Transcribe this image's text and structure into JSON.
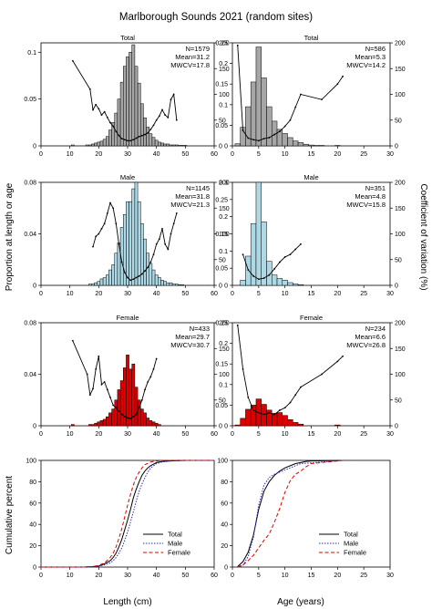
{
  "figure": {
    "title": "Marlborough Sounds 2021 (random sites)",
    "y_label_left": "Proportion at length or age",
    "y_label_right": "Coefficient of variation (%)",
    "x_label_length": "Length (cm)",
    "x_label_age": "Age (years)"
  },
  "chart_data": [
    {
      "id": "length-total",
      "type": "bar",
      "title": "Total",
      "xlim": [
        0,
        60
      ],
      "xticks": [
        0,
        10,
        20,
        30,
        40,
        50,
        60
      ],
      "ylim": [
        0,
        0.11
      ],
      "yticks": [
        0,
        0.05,
        0.1
      ],
      "yticklabels": [
        "0",
        "0.05",
        "0.1"
      ],
      "y2lim": [
        0,
        200
      ],
      "y2ticks": [
        0,
        50,
        100,
        150,
        200
      ],
      "fill": "#a6a6a6",
      "stats": [
        "N=1579",
        "Mean=31.2",
        "MWCV=17.8"
      ],
      "x": [
        11,
        16,
        17,
        18,
        19,
        20,
        21,
        22,
        23,
        24,
        25,
        26,
        27,
        28,
        29,
        30,
        31,
        32,
        33,
        34,
        35,
        36,
        37,
        38,
        39,
        40,
        41,
        42,
        43,
        44,
        45,
        46,
        47,
        48,
        49,
        50
      ],
      "values": [
        0.001,
        0.001,
        0.001,
        0.002,
        0.003,
        0.004,
        0.005,
        0.007,
        0.01,
        0.017,
        0.025,
        0.035,
        0.05,
        0.068,
        0.085,
        0.095,
        0.1,
        0.108,
        0.085,
        0.067,
        0.045,
        0.03,
        0.02,
        0.013,
        0.009,
        0.006,
        0.004,
        0.003,
        0.002,
        0.002,
        0.001,
        0.001,
        0.001,
        0.0005,
        0.0005,
        0.0005
      ],
      "cv": {
        "x": [
          11,
          17,
          18,
          19,
          20,
          21,
          22,
          23,
          24,
          25,
          26,
          27,
          28,
          29,
          30,
          31,
          32,
          33,
          34,
          35,
          36,
          37,
          38,
          39,
          40,
          41,
          42,
          43,
          44,
          45,
          46,
          47
        ],
        "values": [
          165,
          110,
          70,
          80,
          72,
          60,
          66,
          55,
          45,
          38,
          28,
          20,
          14,
          12,
          10,
          10,
          12,
          15,
          18,
          20,
          22,
          25,
          32,
          40,
          50,
          58,
          70,
          60,
          55,
          90,
          100,
          50
        ]
      }
    },
    {
      "id": "age-total",
      "type": "bar",
      "title": "Total",
      "xlim": [
        0,
        30
      ],
      "xticks": [
        0,
        5,
        10,
        15,
        20,
        25,
        30
      ],
      "ylim": [
        0,
        0.25
      ],
      "yticks": [
        0,
        0.05,
        0.1,
        0.15,
        0.2,
        0.25
      ],
      "yticklabels": [
        "0",
        "0.05",
        "0.1",
        "0.15",
        "0.2",
        "0.25"
      ],
      "y2lim": [
        0,
        200
      ],
      "y2ticks": [
        0,
        50,
        100,
        150,
        200
      ],
      "fill": "#a6a6a6",
      "stats": [
        "N=586",
        "Mean=5.3",
        "MWCV=14.2"
      ],
      "x": [
        1,
        2,
        3,
        4,
        5,
        6,
        7,
        8,
        9,
        10,
        11,
        12,
        13,
        14,
        15,
        16,
        17,
        18,
        19,
        20,
        21
      ],
      "values": [
        0.005,
        0.045,
        0.095,
        0.155,
        0.24,
        0.165,
        0.095,
        0.06,
        0.04,
        0.03,
        0.02,
        0.012,
        0.008,
        0.004,
        0.002,
        0.001,
        0.001,
        0,
        0,
        0.001,
        0
      ],
      "cv": {
        "x": [
          1,
          2,
          3,
          4,
          5,
          6,
          7,
          8,
          9,
          10,
          11,
          12,
          13,
          17,
          20,
          21
        ],
        "values": [
          195,
          30,
          15,
          12,
          10,
          14,
          16,
          22,
          28,
          38,
          50,
          75,
          100,
          90,
          120,
          135
        ]
      }
    },
    {
      "id": "length-male",
      "type": "bar",
      "title": "Male",
      "xlim": [
        0,
        60
      ],
      "xticks": [
        0,
        10,
        20,
        30,
        40,
        50,
        60
      ],
      "ylim": [
        0,
        0.08
      ],
      "yticks": [
        0,
        0.04,
        0.08
      ],
      "yticklabels": [
        "0",
        "0.04",
        "0.08"
      ],
      "y2lim": [
        0,
        200
      ],
      "y2ticks": [
        0,
        50,
        100,
        150,
        200
      ],
      "fill": "#add8e6",
      "stats": [
        "N=1145",
        "Mean=31.8",
        "MWCV=21.3"
      ],
      "x": [
        17,
        18,
        19,
        20,
        21,
        22,
        23,
        24,
        25,
        26,
        27,
        28,
        29,
        30,
        31,
        32,
        33,
        34,
        35,
        36,
        37,
        38,
        39,
        40,
        41,
        42,
        43,
        44,
        45,
        46,
        47,
        48,
        49
      ],
      "values": [
        0.001,
        0.001,
        0.002,
        0.003,
        0.005,
        0.006,
        0.008,
        0.012,
        0.016,
        0.025,
        0.033,
        0.045,
        0.055,
        0.065,
        0.065,
        0.075,
        0.08,
        0.065,
        0.048,
        0.036,
        0.025,
        0.017,
        0.012,
        0.008,
        0.006,
        0.004,
        0.003,
        0.002,
        0.002,
        0.001,
        0.001,
        0.0005,
        0.0005
      ],
      "cv": {
        "x": [
          18,
          19,
          20,
          21,
          22,
          23,
          24,
          25,
          26,
          27,
          28,
          29,
          30,
          31,
          32,
          33,
          34,
          35,
          36,
          37,
          38,
          39,
          40,
          41,
          42,
          43,
          44,
          45,
          46,
          47
        ],
        "values": [
          75,
          95,
          100,
          110,
          120,
          140,
          160,
          150,
          120,
          80,
          45,
          25,
          15,
          10,
          12,
          15,
          18,
          22,
          28,
          35,
          45,
          60,
          80,
          90,
          110,
          80,
          70,
          100,
          120,
          140
        ]
      }
    },
    {
      "id": "age-male",
      "type": "bar",
      "title": "Male",
      "xlim": [
        0,
        30
      ],
      "xticks": [
        0,
        5,
        10,
        15,
        20,
        25,
        30
      ],
      "ylim": [
        0,
        0.3
      ],
      "yticks": [
        0,
        0.05,
        0.1,
        0.15,
        0.2,
        0.25,
        0.3
      ],
      "yticklabels": [
        "0",
        "0.05",
        "0.1",
        "0.15",
        "0.2",
        "0.25",
        "0.3"
      ],
      "y2lim": [
        0,
        200
      ],
      "y2ticks": [
        0,
        50,
        100,
        150,
        200
      ],
      "fill": "#add8e6",
      "stats": [
        "N=351",
        "Mean=4.8",
        "MWCV=15.8"
      ],
      "x": [
        2,
        3,
        4,
        5,
        6,
        7,
        8,
        9,
        10,
        11,
        12,
        13
      ],
      "values": [
        0.015,
        0.085,
        0.18,
        0.3,
        0.185,
        0.07,
        0.03,
        0.02,
        0.015,
        0.008,
        0.004,
        0.002
      ],
      "cv": {
        "x": [
          2,
          3,
          4,
          5,
          6,
          7,
          8,
          9,
          10,
          11,
          12,
          13
        ],
        "values": [
          60,
          30,
          18,
          12,
          14,
          20,
          32,
          45,
          55,
          60,
          70,
          80
        ]
      }
    },
    {
      "id": "length-female",
      "type": "bar",
      "title": "Female",
      "xlim": [
        0,
        60
      ],
      "xticks": [
        0,
        10,
        20,
        30,
        40,
        50,
        60
      ],
      "ylim": [
        0,
        0.08
      ],
      "yticks": [
        0,
        0.04,
        0.08
      ],
      "yticklabels": [
        "0",
        "0.04",
        "0.08"
      ],
      "y2lim": [
        0,
        200
      ],
      "y2ticks": [
        0,
        50,
        100,
        150,
        200
      ],
      "fill": "#dd0000",
      "stats": [
        "N=433",
        "Mean=29.7",
        "MWCV=30.7"
      ],
      "x": [
        11,
        17,
        18,
        19,
        20,
        21,
        22,
        23,
        24,
        25,
        26,
        27,
        28,
        29,
        30,
        31,
        32,
        33,
        34,
        35,
        36,
        37,
        38,
        39,
        40,
        41
      ],
      "values": [
        0.001,
        0.001,
        0.001,
        0.002,
        0.003,
        0.004,
        0.005,
        0.007,
        0.01,
        0.013,
        0.02,
        0.028,
        0.035,
        0.045,
        0.055,
        0.044,
        0.048,
        0.03,
        0.02,
        0.013,
        0.01,
        0.006,
        0.004,
        0.003,
        0.002,
        0.001
      ],
      "cv": {
        "x": [
          11,
          16,
          17,
          18,
          19,
          20,
          21,
          22,
          23,
          24,
          25,
          26,
          27,
          28,
          29,
          30,
          31,
          32,
          33,
          34,
          35,
          36,
          37,
          38,
          39,
          40
        ],
        "values": [
          165,
          100,
          60,
          72,
          110,
          135,
          80,
          85,
          70,
          55,
          40,
          35,
          28,
          22,
          18,
          15,
          14,
          18,
          22,
          35,
          50,
          70,
          85,
          95,
          110,
          130
        ]
      }
    },
    {
      "id": "age-female",
      "type": "bar",
      "title": "Female",
      "xlim": [
        0,
        30
      ],
      "xticks": [
        0,
        5,
        10,
        15,
        20,
        25,
        30
      ],
      "ylim": [
        0,
        0.25
      ],
      "yticks": [
        0,
        0.05,
        0.1,
        0.15,
        0.2,
        0.25
      ],
      "yticklabels": [
        "0",
        "0.05",
        "0.1",
        "0.15",
        "0.2",
        "0.25"
      ],
      "y2lim": [
        0,
        200
      ],
      "y2ticks": [
        0,
        50,
        100,
        150,
        200
      ],
      "fill": "#dd0000",
      "stats": [
        "N=234",
        "Mean=6.6",
        "MWCV=26.8"
      ],
      "x": [
        1,
        2,
        3,
        4,
        5,
        6,
        7,
        8,
        9,
        10,
        11,
        12,
        13,
        20
      ],
      "values": [
        0.002,
        0.018,
        0.04,
        0.05,
        0.065,
        0.052,
        0.038,
        0.03,
        0.032,
        0.025,
        0.015,
        0.008,
        0.004,
        0.002
      ],
      "cv": {
        "x": [
          1,
          2,
          3,
          4,
          5,
          6,
          7,
          8,
          9,
          10,
          11,
          12,
          13,
          17,
          20,
          21
        ],
        "values": [
          195,
          110,
          55,
          30,
          25,
          22,
          25,
          22,
          30,
          35,
          45,
          60,
          75,
          100,
          125,
          135
        ]
      }
    },
    {
      "id": "cum-length",
      "type": "line",
      "xlim": [
        0,
        60
      ],
      "xticks": [
        0,
        10,
        20,
        30,
        40,
        50,
        60
      ],
      "ylim": [
        0,
        100
      ],
      "yticks": [
        0,
        20,
        40,
        60,
        80,
        100
      ],
      "ylabel": "Cumulative percent",
      "legend_position": "bottom-right",
      "series": [
        {
          "name": "Total",
          "color": "#000000",
          "dash": "solid",
          "x": [
            0,
            15,
            18,
            20,
            22,
            24,
            25,
            26,
            27,
            28,
            29,
            30,
            31,
            32,
            33,
            34,
            35,
            36,
            37,
            38,
            40,
            42,
            45,
            50,
            60
          ],
          "values": [
            0,
            0,
            0.5,
            1,
            3,
            6,
            9,
            13,
            19,
            26,
            35,
            44,
            54,
            65,
            73,
            80,
            86,
            90,
            93,
            95,
            98,
            99,
            99.5,
            100,
            100
          ]
        },
        {
          "name": "Male",
          "color": "#2a2acc",
          "dash": "dotted",
          "x": [
            0,
            15,
            18,
            20,
            22,
            24,
            25,
            26,
            27,
            28,
            29,
            30,
            31,
            32,
            33,
            34,
            35,
            36,
            37,
            38,
            40,
            42,
            45,
            50,
            60
          ],
          "values": [
            0,
            0,
            0.3,
            1,
            2,
            4,
            6,
            9,
            13,
            18,
            25,
            33,
            42,
            52,
            62,
            71,
            78,
            84,
            89,
            93,
            97,
            98.5,
            99.5,
            100,
            100
          ]
        },
        {
          "name": "Female",
          "color": "#dd0000",
          "dash": "dashed",
          "x": [
            0,
            15,
            18,
            20,
            22,
            24,
            25,
            26,
            27,
            28,
            29,
            30,
            31,
            32,
            33,
            34,
            35,
            36,
            38,
            40,
            42,
            50,
            60
          ],
          "values": [
            0,
            0,
            0.5,
            1.5,
            4,
            9,
            13,
            19,
            27,
            36,
            47,
            58,
            68,
            77,
            84,
            89,
            93,
            96,
            98.5,
            99.5,
            100,
            100,
            100
          ]
        }
      ]
    },
    {
      "id": "cum-age",
      "type": "line",
      "xlim": [
        0,
        30
      ],
      "xticks": [
        0,
        5,
        10,
        15,
        20,
        25,
        30
      ],
      "ylim": [
        0,
        100
      ],
      "yticks": [
        0,
        20,
        40,
        60,
        80,
        100
      ],
      "legend_position": "bottom-right",
      "series": [
        {
          "name": "Total",
          "color": "#000000",
          "dash": "solid",
          "x": [
            1,
            2,
            3,
            4,
            5,
            6,
            7,
            8,
            9,
            10,
            11,
            12,
            13,
            14,
            15,
            21
          ],
          "values": [
            0.5,
            5,
            14,
            30,
            54,
            71,
            80,
            86,
            90,
            93,
            95,
            97,
            98,
            99,
            99.5,
            100
          ]
        },
        {
          "name": "Male",
          "color": "#2a2acc",
          "dash": "dotted",
          "x": [
            1,
            2,
            3,
            4,
            5,
            6,
            7,
            8,
            9,
            10,
            11,
            12,
            13,
            21
          ],
          "values": [
            0,
            1.5,
            10,
            28,
            58,
            77,
            84,
            87,
            89,
            91,
            93,
            95,
            97,
            100
          ]
        },
        {
          "name": "Female",
          "color": "#dd0000",
          "dash": "dashed",
          "x": [
            1,
            2,
            3,
            4,
            5,
            6,
            7,
            8,
            9,
            10,
            11,
            12,
            13,
            14,
            15,
            21
          ],
          "values": [
            0.2,
            2,
            6,
            11,
            18,
            25,
            31,
            42,
            55,
            70,
            81,
            87,
            90,
            94,
            97,
            100
          ]
        }
      ]
    }
  ]
}
